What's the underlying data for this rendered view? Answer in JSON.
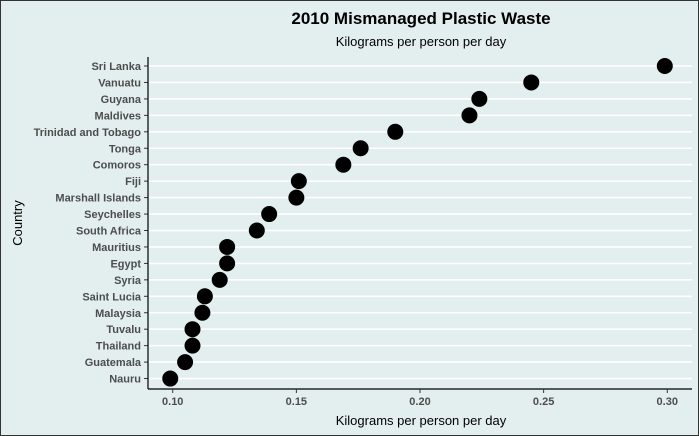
{
  "chart_data": {
    "type": "scatter",
    "title": "2010 Mismanaged Plastic Waste",
    "subtitle": "Kilograms per person per day",
    "xlabel": "Kilograms per person per day",
    "ylabel": "Country",
    "xlim": [
      0.09,
      0.31
    ],
    "x_ticks": [
      0.1,
      0.15,
      0.2,
      0.25,
      0.3
    ],
    "x_tick_labels": [
      "0.10",
      "0.15",
      "0.20",
      "0.25",
      "0.30"
    ],
    "grid": "horizontal",
    "point_color": "#000000",
    "background_color": "#e3efee",
    "points": [
      {
        "country": "Sri Lanka",
        "value": 0.299
      },
      {
        "country": "Vanuatu",
        "value": 0.245
      },
      {
        "country": "Guyana",
        "value": 0.224
      },
      {
        "country": "Maldives",
        "value": 0.22
      },
      {
        "country": "Trinidad and Tobago",
        "value": 0.19
      },
      {
        "country": "Tonga",
        "value": 0.176
      },
      {
        "country": "Comoros",
        "value": 0.169
      },
      {
        "country": "Fiji",
        "value": 0.151
      },
      {
        "country": "Marshall Islands",
        "value": 0.15
      },
      {
        "country": "Seychelles",
        "value": 0.139
      },
      {
        "country": "South Africa",
        "value": 0.134
      },
      {
        "country": "Mauritius",
        "value": 0.122
      },
      {
        "country": "Egypt",
        "value": 0.122
      },
      {
        "country": "Syria",
        "value": 0.119
      },
      {
        "country": "Saint Lucia",
        "value": 0.113
      },
      {
        "country": "Malaysia",
        "value": 0.112
      },
      {
        "country": "Tuvalu",
        "value": 0.108
      },
      {
        "country": "Thailand",
        "value": 0.108
      },
      {
        "country": "Guatemala",
        "value": 0.105
      },
      {
        "country": "Nauru",
        "value": 0.099
      }
    ]
  }
}
